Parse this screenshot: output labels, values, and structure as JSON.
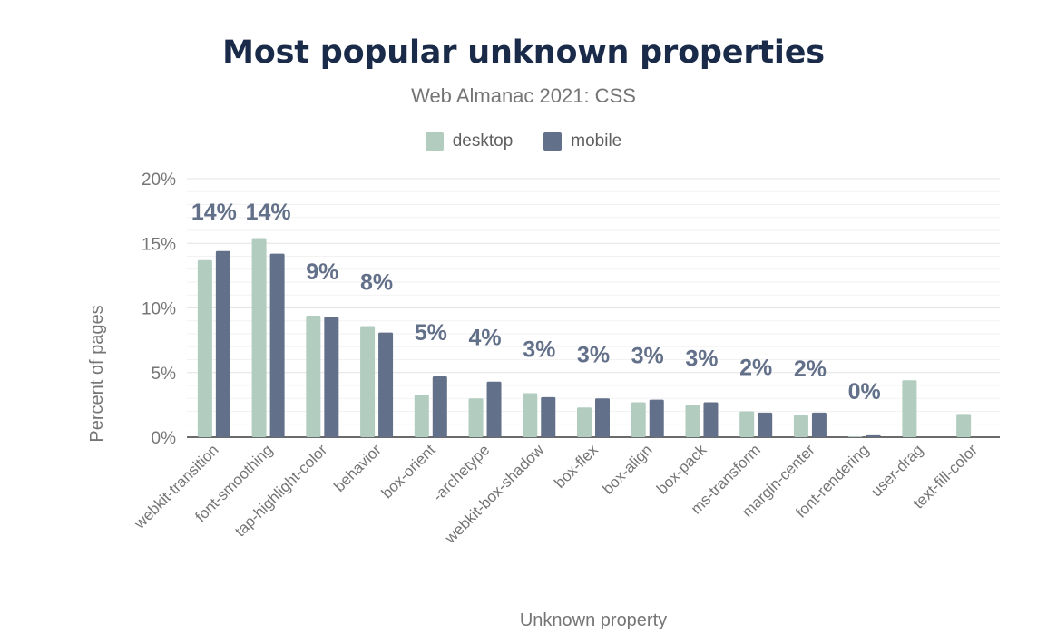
{
  "chart_data": {
    "type": "bar",
    "title": "Most popular unknown properties",
    "subtitle": "Web Almanac 2021: CSS",
    "xlabel": "Unknown property",
    "ylabel": "Percent of pages",
    "ylim": [
      0,
      20
    ],
    "yticks": [
      0,
      5,
      10,
      15,
      20
    ],
    "ytick_labels": [
      "0%",
      "5%",
      "10%",
      "15%",
      "20%"
    ],
    "categories": [
      "webkit-transition",
      "font-smoothing",
      "tap-highlight-color",
      "behavior",
      "box-orient",
      "-archetype",
      "webkit-box-shadow",
      "box-flex",
      "box-align",
      "box-pack",
      "ms-transform",
      "margin-center",
      "font-rendering",
      "user-drag",
      "text-fill-color"
    ],
    "series": [
      {
        "name": "desktop",
        "color": "#b2cdbf",
        "values": [
          13.7,
          15.4,
          9.4,
          8.6,
          3.3,
          3.0,
          3.4,
          2.3,
          2.7,
          2.5,
          2.0,
          1.7,
          0.05,
          4.4,
          1.8
        ]
      },
      {
        "name": "mobile",
        "color": "#637089",
        "values": [
          14.4,
          14.2,
          9.3,
          8.1,
          4.7,
          4.3,
          3.1,
          3.0,
          2.9,
          2.7,
          1.9,
          1.9,
          0.15,
          null,
          null
        ]
      }
    ],
    "data_labels": [
      "14%",
      "14%",
      "9%",
      "8%",
      "5%",
      "4%",
      "3%",
      "3%",
      "3%",
      "3%",
      "2%",
      "2%",
      "0%",
      "",
      ""
    ],
    "data_label_color": "#637089",
    "grid": true,
    "legend_position": "top-center"
  }
}
